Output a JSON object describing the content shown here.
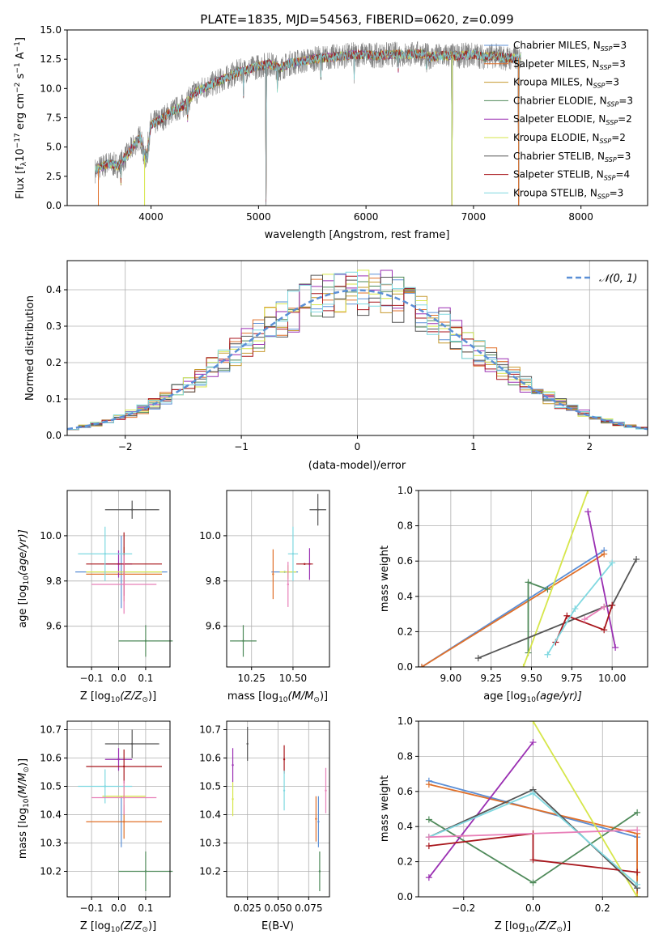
{
  "figure": {
    "title": "PLATE=1835, MJD=54563, FIBERID=0620, z=0.099"
  },
  "models": [
    {
      "name": "Chabrier MILES",
      "nssp": "3",
      "color": "#5b8fd6"
    },
    {
      "name": "Salpeter MILES",
      "nssp": "3",
      "color": "#e0702a"
    },
    {
      "name": "Kroupa MILES",
      "nssp": "3",
      "color": "#c69a2e"
    },
    {
      "name": "Chabrier ELODIE",
      "nssp": "3",
      "color": "#4f8a5a"
    },
    {
      "name": "Salpeter ELODIE",
      "nssp": "2",
      "color": "#9a2fb2"
    },
    {
      "name": "Kroupa ELODIE",
      "nssp": "2",
      "color": "#d6e64a"
    },
    {
      "name": "Chabrier STELIB",
      "nssp": "3",
      "color": "#555555"
    },
    {
      "name": "Salpeter STELIB",
      "nssp": "4",
      "color": "#a8161c"
    },
    {
      "name": "Kroupa STELIB",
      "nssp": "3",
      "color": "#7fd8e0"
    }
  ],
  "extra_colors": {
    "pink": "#e87fb8",
    "spectrum": "#808080",
    "normal": "#5b8fd6"
  },
  "chart_data": [
    {
      "id": "spectrum",
      "type": "line",
      "xlabel": "wavelength [Angstrom, rest frame]",
      "ylabel_prefix": "Flux [f",
      "ylabel_lambda": "λ",
      "ylabel_mid": "10",
      "ylabel_exp": "−17",
      "ylabel_units": " erg cm",
      "ylabel_exp2": "−2",
      "ylabel_s": " s",
      "ylabel_exp3": "−1",
      "ylabel_A": " A",
      "ylabel_exp4": "−1",
      "ylabel_end": "]",
      "xlim": [
        3220,
        8620
      ],
      "ylim": [
        0,
        15
      ],
      "xticks": [
        "4000",
        "5000",
        "6000",
        "7000",
        "8000"
      ],
      "yticks": [
        "0.0",
        "2.5",
        "5.0",
        "7.5",
        "10.0",
        "12.5",
        "15.0"
      ],
      "legend_position": "right",
      "legend_sub": "SSP",
      "continuum": [
        [
          3480,
          3.0
        ],
        [
          3600,
          3.6
        ],
        [
          3700,
          3.4
        ],
        [
          3800,
          4.6
        ],
        [
          3900,
          5.9
        ],
        [
          3950,
          3.9
        ],
        [
          4000,
          6.9
        ],
        [
          4100,
          7.4
        ],
        [
          4200,
          8.1
        ],
        [
          4300,
          8.5
        ],
        [
          4400,
          9.6
        ],
        [
          4500,
          10.1
        ],
        [
          4600,
          10.5
        ],
        [
          4700,
          10.9
        ],
        [
          4800,
          11.4
        ],
        [
          4900,
          11.6
        ],
        [
          5000,
          11.9
        ],
        [
          5100,
          12.1
        ],
        [
          5200,
          11.7
        ],
        [
          5300,
          12.2
        ],
        [
          5400,
          12.3
        ],
        [
          5500,
          12.5
        ],
        [
          5600,
          12.6
        ],
        [
          5700,
          12.7
        ],
        [
          5800,
          12.8
        ],
        [
          5900,
          12.9
        ],
        [
          6000,
          12.9
        ],
        [
          6100,
          12.8
        ],
        [
          6200,
          12.9
        ],
        [
          6300,
          12.9
        ],
        [
          6400,
          12.9
        ],
        [
          6500,
          13.0
        ],
        [
          6600,
          12.7
        ],
        [
          6700,
          12.8
        ],
        [
          6800,
          12.8
        ],
        [
          6900,
          12.8
        ],
        [
          7000,
          12.9
        ],
        [
          7100,
          12.7
        ],
        [
          7200,
          12.8
        ],
        [
          7300,
          12.6
        ],
        [
          7440,
          12.6
        ]
      ],
      "dips": [
        [
          3720,
          1.6
        ],
        [
          3930,
          1.0
        ],
        [
          3968,
          1.5
        ],
        [
          4340,
          1.5
        ],
        [
          4860,
          2.0
        ],
        [
          5070,
          11.5
        ],
        [
          5175,
          1.8
        ],
        [
          5580,
          1.5
        ],
        [
          5890,
          1.8
        ],
        [
          6300,
          1.2
        ],
        [
          6563,
          2.0
        ],
        [
          6800,
          12.8
        ],
        [
          7420,
          12.6
        ]
      ]
    },
    {
      "id": "residuals",
      "type": "histogram",
      "xlabel": "(data-model)/error",
      "ylabel": "Normed distribution",
      "xlim": [
        -2.5,
        2.5
      ],
      "ylim": [
        0,
        0.48
      ],
      "xticks": [
        "−2",
        "−1",
        "0",
        "1",
        "2"
      ],
      "yticks": [
        "0.0",
        "0.1",
        "0.2",
        "0.3",
        "0.4"
      ],
      "legend": "𝒩(0, 1)",
      "legend_position": "top-right",
      "grid": true
    },
    {
      "id": "age-vs-Z",
      "type": "errorbar",
      "xlabel": "Z [log",
      "xlabel_sub": "10",
      "xlabel_tail": "(Z/Z",
      "xlabel_sun": "⊙",
      "xlabel_end": ")]",
      "ylabel": "age  [log",
      "ylabel_sub": "10",
      "ylabel_tail": "(age/yr)]",
      "xlim": [
        -0.19,
        0.19
      ],
      "ylim": [
        9.42,
        10.2
      ],
      "xticks": [
        "−0.1",
        "0.0",
        "0.1"
      ],
      "yticks": [
        "9.6",
        "9.8",
        "10.0"
      ],
      "grid": true,
      "points": [
        {
          "m": 0,
          "x": 0.01,
          "y": 9.84,
          "xe": 0.17,
          "ye": 0.16
        },
        {
          "m": 1,
          "x": 0.02,
          "y": 9.83,
          "xe": 0.14,
          "ye": 0.12
        },
        {
          "m": 3,
          "x": 0.1,
          "y": 9.535,
          "xe": 0.1,
          "ye": 0.07
        },
        {
          "m": 4,
          "x": 0.0,
          "y": 9.875,
          "xe": 0.05,
          "ye": 0.06
        },
        {
          "m": 5,
          "x": 0.02,
          "y": 9.84,
          "xe": 0.14,
          "ye": 0.04
        },
        {
          "m": 6,
          "x": 0.05,
          "y": 10.115,
          "xe": 0.1,
          "ye": 0.04
        },
        {
          "m": 7,
          "x": 0.02,
          "y": 9.875,
          "xe": 0.14,
          "ye": 0.14
        },
        {
          "m": 8,
          "x": -0.05,
          "y": 9.92,
          "xe": 0.1,
          "ye": 0.12
        },
        {
          "m": 9,
          "x": 0.02,
          "y": 9.785,
          "xe": 0.12,
          "ye": 0.13
        }
      ]
    },
    {
      "id": "age-vs-mass",
      "type": "errorbar",
      "xlabel": "mass [log",
      "xlabel_sub": "10",
      "xlabel_tail": "(M/M",
      "xlabel_sun": "⊙",
      "xlabel_end": ")]",
      "xlim": [
        10.1,
        10.72
      ],
      "ylim": [
        9.42,
        10.2
      ],
      "xticks": [
        "10.25",
        "10.50"
      ],
      "yticks": [
        "9.6",
        "9.8",
        "10.0"
      ],
      "grid": true,
      "points": [
        {
          "m": 0,
          "x": 10.45,
          "y": 9.84,
          "xe": 0.08,
          "ye": 0.0
        },
        {
          "m": 1,
          "x": 10.38,
          "y": 9.83,
          "xe": 0.0,
          "ye": 0.11
        },
        {
          "m": 3,
          "x": 10.2,
          "y": 9.535,
          "xe": 0.08,
          "ye": 0.07
        },
        {
          "m": 4,
          "x": 10.6,
          "y": 9.875,
          "xe": 0.0,
          "ye": 0.07
        },
        {
          "m": 5,
          "x": 10.47,
          "y": 9.84,
          "xe": 0.05,
          "ye": 0.03
        },
        {
          "m": 6,
          "x": 10.65,
          "y": 10.115,
          "xe": 0.05,
          "ye": 0.07
        },
        {
          "m": 7,
          "x": 10.57,
          "y": 9.875,
          "xe": 0.05,
          "ye": 0.0
        },
        {
          "m": 8,
          "x": 10.5,
          "y": 9.92,
          "xe": 0.03,
          "ye": 0.12
        },
        {
          "m": 9,
          "x": 10.47,
          "y": 9.785,
          "xe": 0.0,
          "ye": 0.1
        }
      ]
    },
    {
      "id": "weight-vs-age",
      "type": "line",
      "xlabel": "age  [log",
      "xlabel_sub": "10",
      "xlabel_tail": "(age/yr)]",
      "ylabel": "mass weight",
      "xlim": [
        8.8,
        10.22
      ],
      "ylim": [
        0,
        1
      ],
      "xticks": [
        "9.00",
        "9.25",
        "9.50",
        "9.75",
        "10.00"
      ],
      "yticks": [
        "0.0",
        "0.2",
        "0.4",
        "0.6",
        "0.8",
        "1.0"
      ],
      "grid": true,
      "series": [
        {
          "m": 0,
          "x": [
            8.82,
            9.95
          ],
          "y": [
            0.0,
            0.66
          ]
        },
        {
          "m": 1,
          "x": [
            8.82,
            9.95
          ],
          "y": [
            0.0,
            0.64
          ]
        },
        {
          "m": 3,
          "x": [
            9.48,
            9.48,
            9.6
          ],
          "y": [
            0.08,
            0.48,
            0.44
          ]
        },
        {
          "m": 4,
          "x": [
            9.85,
            10.02
          ],
          "y": [
            0.88,
            0.11
          ]
        },
        {
          "m": 5,
          "x": [
            9.45,
            9.85
          ],
          "y": [
            0.0,
            1.0
          ]
        },
        {
          "m": 6,
          "x": [
            9.17,
            9.95,
            10.0,
            10.15
          ],
          "y": [
            0.05,
            0.34,
            0.35,
            0.61
          ]
        },
        {
          "m": 7,
          "x": [
            9.65,
            9.72,
            9.95,
            10.0
          ],
          "y": [
            0.14,
            0.29,
            0.21,
            0.35
          ]
        },
        {
          "m": 8,
          "x": [
            9.6,
            9.77,
            10.0
          ],
          "y": [
            0.07,
            0.33,
            0.59
          ]
        },
        {
          "m": 9,
          "x": [
            9.83,
            9.95
          ],
          "y": [
            0.27,
            0.34
          ]
        }
      ]
    },
    {
      "id": "mass-vs-Z",
      "type": "errorbar",
      "xlabel": "Z [log",
      "xlabel_sub": "10",
      "xlabel_tail": "(Z/Z",
      "xlabel_sun": "⊙",
      "xlabel_end": ")]",
      "ylabel": "mass [log",
      "ylabel_sub": "10",
      "ylabel_tail": "(M/M",
      "ylabel_sun": "⊙",
      "ylabel_end": ")]",
      "xlim": [
        -0.19,
        0.19
      ],
      "ylim": [
        10.11,
        10.73
      ],
      "xticks": [
        "−0.1",
        "0.0",
        "0.1"
      ],
      "yticks": [
        "10.2",
        "10.3",
        "10.4",
        "10.5",
        "10.6",
        "10.7"
      ],
      "grid": true,
      "points": [
        {
          "m": 0,
          "x": 0.01,
          "y": 10.375,
          "xe": 0.0,
          "ye": 0.09
        },
        {
          "m": 1,
          "x": 0.02,
          "y": 10.375,
          "xe": 0.14,
          "ye": 0.06
        },
        {
          "m": 3,
          "x": 0.1,
          "y": 10.2,
          "xe": 0.1,
          "ye": 0.07
        },
        {
          "m": 4,
          "x": 0.0,
          "y": 10.595,
          "xe": 0.05,
          "ye": 0.04
        },
        {
          "m": 5,
          "x": 0.02,
          "y": 10.465,
          "xe": 0.08,
          "ye": 0.04
        },
        {
          "m": 6,
          "x": 0.05,
          "y": 10.65,
          "xe": 0.1,
          "ye": 0.05
        },
        {
          "m": 7,
          "x": 0.02,
          "y": 10.57,
          "xe": 0.14,
          "ye": 0.06
        },
        {
          "m": 8,
          "x": -0.05,
          "y": 10.5,
          "xe": 0.1,
          "ye": 0.06
        },
        {
          "m": 9,
          "x": 0.02,
          "y": 10.46,
          "xe": 0.12,
          "ye": 0.06
        }
      ]
    },
    {
      "id": "mass-vs-EBV",
      "type": "errorbar",
      "xlabel": "E(B-V)",
      "xlim": [
        0.008,
        0.092
      ],
      "ylim": [
        10.11,
        10.73
      ],
      "xticks": [
        "0.025",
        "0.050",
        "0.075"
      ],
      "yticks": [
        "10.2",
        "10.3",
        "10.4",
        "10.5",
        "10.6",
        "10.7"
      ],
      "grid": true,
      "points": [
        {
          "m": 0,
          "x": 0.083,
          "y": 10.375,
          "xe": 0.0,
          "ye": 0.09
        },
        {
          "m": 1,
          "x": 0.081,
          "y": 10.385,
          "xe": 0.0,
          "ye": 0.08
        },
        {
          "m": 3,
          "x": 0.084,
          "y": 10.2,
          "xe": 0.0,
          "ye": 0.07
        },
        {
          "m": 4,
          "x": 0.013,
          "y": 10.575,
          "xe": 0.0,
          "ye": 0.06
        },
        {
          "m": 5,
          "x": 0.013,
          "y": 10.455,
          "xe": 0.0,
          "ye": 0.06
        },
        {
          "m": 6,
          "x": 0.025,
          "y": 10.65,
          "xe": 0.0,
          "ye": 0.06
        },
        {
          "m": 7,
          "x": 0.055,
          "y": 10.595,
          "xe": 0.0,
          "ye": 0.05
        },
        {
          "m": 8,
          "x": 0.055,
          "y": 10.485,
          "xe": 0.0,
          "ye": 0.07
        },
        {
          "m": 9,
          "x": 0.089,
          "y": 10.485,
          "xe": 0.0,
          "ye": 0.08
        }
      ]
    },
    {
      "id": "weight-vs-Z",
      "type": "line",
      "xlabel": "Z [log",
      "xlabel_sub": "10",
      "xlabel_tail": "(Z/Z",
      "xlabel_sun": "⊙",
      "xlabel_end": ")]",
      "ylabel": "mass weight",
      "xlim": [
        -0.33,
        0.33
      ],
      "ylim": [
        0,
        1
      ],
      "xticks": [
        "−0.2",
        "0.0",
        "0.2"
      ],
      "yticks": [
        "0.0",
        "0.2",
        "0.4",
        "0.6",
        "0.8",
        "1.0"
      ],
      "grid": true,
      "series": [
        {
          "m": 0,
          "x": [
            -0.3,
            0.3,
            0.3
          ],
          "y": [
            0.66,
            0.34,
            0.05
          ]
        },
        {
          "m": 1,
          "x": [
            -0.3,
            0.3,
            0.3
          ],
          "y": [
            0.64,
            0.36,
            0.0
          ]
        },
        {
          "m": 3,
          "x": [
            -0.3,
            0.0,
            0.3
          ],
          "y": [
            0.44,
            0.08,
            0.48
          ]
        },
        {
          "m": 4,
          "x": [
            -0.3,
            0.0
          ],
          "y": [
            0.11,
            0.88
          ]
        },
        {
          "m": 5,
          "x": [
            0.0,
            0.3
          ],
          "y": [
            1.0,
            0.0
          ]
        },
        {
          "m": 6,
          "x": [
            -0.3,
            0.0,
            0.3
          ],
          "y": [
            0.34,
            0.61,
            0.05
          ]
        },
        {
          "m": 7,
          "x": [
            -0.3,
            0.0,
            0.0,
            0.3
          ],
          "y": [
            0.29,
            0.36,
            0.21,
            0.14
          ]
        },
        {
          "m": 8,
          "x": [
            -0.3,
            0.0,
            0.3
          ],
          "y": [
            0.34,
            0.59,
            0.07
          ]
        },
        {
          "m": 9,
          "x": [
            -0.3,
            0.3
          ],
          "y": [
            0.34,
            0.38
          ]
        }
      ]
    }
  ]
}
